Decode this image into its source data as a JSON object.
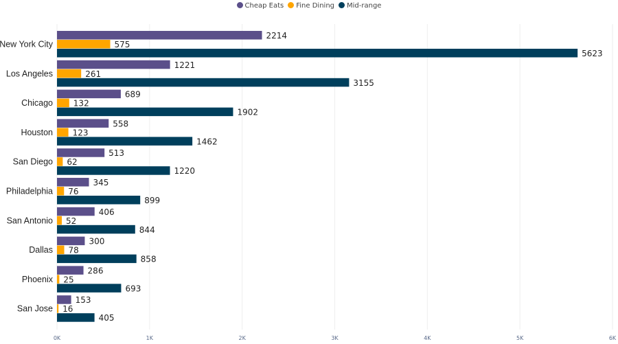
{
  "chart_data": {
    "type": "bar",
    "orientation": "horizontal",
    "categories": [
      "New York City",
      "Los Angeles",
      "Chicago",
      "Houston",
      "San Diego",
      "Philadelphia",
      "San Antonio",
      "Dallas",
      "Phoenix",
      "San Jose"
    ],
    "series": [
      {
        "name": "Cheap Eats",
        "color": "#5B4F8A",
        "values": [
          2214,
          1221,
          689,
          558,
          513,
          345,
          406,
          300,
          286,
          153
        ]
      },
      {
        "name": "Fine Dining",
        "color": "#FFA500",
        "values": [
          575,
          261,
          132,
          123,
          62,
          76,
          52,
          78,
          25,
          16
        ]
      },
      {
        "name": "Mid-range",
        "color": "#003F5C",
        "values": [
          5623,
          3155,
          1902,
          1462,
          1220,
          899,
          844,
          858,
          693,
          405
        ]
      }
    ],
    "xlim": [
      0,
      6000
    ],
    "xticks": [
      0,
      1000,
      2000,
      3000,
      4000,
      5000,
      6000
    ],
    "xtick_labels": [
      "0K",
      "1K",
      "2K",
      "3K",
      "4K",
      "5K",
      "6K"
    ],
    "grid": true,
    "legend_position": "top-center",
    "data_labels": true
  }
}
